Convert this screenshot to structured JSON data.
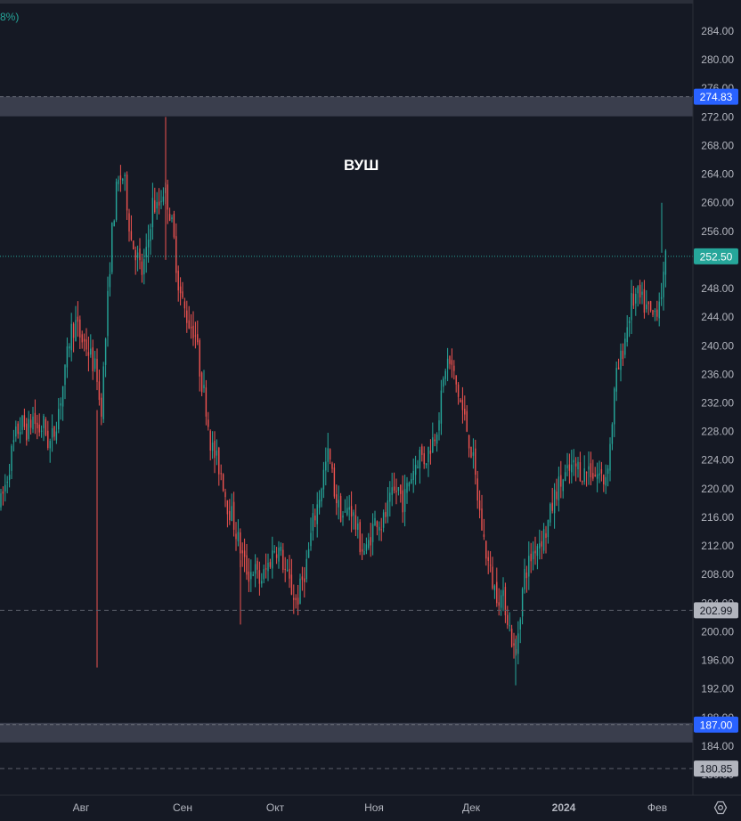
{
  "legend": {
    "change_fragment": "8%)"
  },
  "chart_data": {
    "type": "candlestick",
    "title": "ВУШ",
    "x_tick_labels": [
      "Авг",
      "Сен",
      "Окт",
      "Ноя",
      "Дек",
      "2024",
      "Фев"
    ],
    "y_tick_labels": [
      "284.00",
      "280.00",
      "276.00",
      "272.00",
      "268.00",
      "264.00",
      "260.00",
      "256.00",
      "252.00",
      "248.00",
      "244.00",
      "240.00",
      "236.00",
      "232.00",
      "228.00",
      "224.00",
      "220.00",
      "216.00",
      "212.00",
      "208.00",
      "204.00",
      "200.00",
      "196.00",
      "192.00",
      "188.00",
      "184.00",
      "180.00"
    ],
    "ylim": [
      178,
      288
    ],
    "last_price": 252.5,
    "levels": [
      {
        "value": 274.83,
        "label": "274.83",
        "style": "zone",
        "color": "#2962ff"
      },
      {
        "value": 202.99,
        "label": "202.99",
        "style": "dashed",
        "color": "#b2b5be"
      },
      {
        "value": 187.0,
        "label": "187.00",
        "style": "zone",
        "color": "#2962ff"
      },
      {
        "value": 180.85,
        "label": "180.85",
        "style": "dashed",
        "color": "#b2b5be"
      }
    ],
    "colors": {
      "up": "#26a69a",
      "down": "#ef5350",
      "last": "#26a69a",
      "zone": "#3a3e4d"
    },
    "anchors": [
      [
        0,
        218
      ],
      [
        6,
        221
      ],
      [
        12,
        225
      ],
      [
        18,
        228
      ],
      [
        24,
        229
      ],
      [
        30,
        228
      ],
      [
        36,
        230
      ],
      [
        42,
        228
      ],
      [
        48,
        229
      ],
      [
        54,
        226
      ],
      [
        60,
        228
      ],
      [
        66,
        232
      ],
      [
        72,
        236
      ],
      [
        78,
        242
      ],
      [
        84,
        243
      ],
      [
        90,
        241
      ],
      [
        96,
        240
      ],
      [
        102,
        238
      ],
      [
        108,
        236
      ],
      [
        112,
        230
      ],
      [
        118,
        242
      ],
      [
        124,
        255
      ],
      [
        130,
        262
      ],
      [
        136,
        264
      ],
      [
        140,
        262
      ],
      [
        146,
        255
      ],
      [
        152,
        253
      ],
      [
        158,
        250
      ],
      [
        164,
        253
      ],
      [
        170,
        260
      ],
      [
        176,
        259
      ],
      [
        182,
        262
      ],
      [
        188,
        260
      ],
      [
        194,
        255
      ],
      [
        200,
        248
      ],
      [
        206,
        245
      ],
      [
        212,
        243
      ],
      [
        218,
        242
      ],
      [
        224,
        236
      ],
      [
        230,
        232
      ],
      [
        236,
        226
      ],
      [
        242,
        224
      ],
      [
        248,
        222
      ],
      [
        254,
        218
      ],
      [
        260,
        216
      ],
      [
        266,
        213
      ],
      [
        272,
        210
      ],
      [
        278,
        208
      ],
      [
        284,
        209
      ],
      [
        290,
        207
      ],
      [
        296,
        208
      ],
      [
        302,
        210
      ],
      [
        308,
        212
      ],
      [
        314,
        211
      ],
      [
        320,
        208
      ],
      [
        326,
        206
      ],
      [
        332,
        204
      ],
      [
        338,
        207
      ],
      [
        344,
        210
      ],
      [
        350,
        215
      ],
      [
        356,
        218
      ],
      [
        362,
        222
      ],
      [
        368,
        225
      ],
      [
        374,
        220
      ],
      [
        380,
        217
      ],
      [
        386,
        216
      ],
      [
        392,
        218
      ],
      [
        398,
        215
      ],
      [
        404,
        212
      ],
      [
        410,
        211
      ],
      [
        416,
        214
      ],
      [
        422,
        216
      ],
      [
        428,
        215
      ],
      [
        434,
        217
      ],
      [
        440,
        219
      ],
      [
        446,
        220
      ],
      [
        452,
        218
      ],
      [
        458,
        221
      ],
      [
        464,
        223
      ],
      [
        470,
        225
      ],
      [
        476,
        224
      ],
      [
        482,
        226
      ],
      [
        488,
        228
      ],
      [
        494,
        232
      ],
      [
        500,
        238
      ],
      [
        506,
        237
      ],
      [
        512,
        234
      ],
      [
        518,
        231
      ],
      [
        524,
        228
      ],
      [
        530,
        224
      ],
      [
        536,
        218
      ],
      [
        542,
        213
      ],
      [
        548,
        209
      ],
      [
        554,
        206
      ],
      [
        560,
        205
      ],
      [
        566,
        204
      ],
      [
        572,
        200
      ],
      [
        578,
        196
      ],
      [
        582,
        202
      ],
      [
        588,
        208
      ],
      [
        594,
        210
      ],
      [
        600,
        212
      ],
      [
        606,
        213
      ],
      [
        612,
        214
      ],
      [
        618,
        217
      ],
      [
        624,
        220
      ],
      [
        630,
        221
      ],
      [
        636,
        222
      ],
      [
        642,
        223
      ],
      [
        648,
        223
      ],
      [
        654,
        222
      ],
      [
        660,
        223
      ],
      [
        666,
        222
      ],
      [
        672,
        222
      ],
      [
        678,
        221
      ],
      [
        684,
        226
      ],
      [
        690,
        235
      ],
      [
        696,
        238
      ],
      [
        702,
        242
      ],
      [
        708,
        246
      ],
      [
        714,
        247
      ],
      [
        720,
        246
      ],
      [
        726,
        245
      ],
      [
        732,
        244
      ],
      [
        738,
        246
      ],
      [
        744,
        249
      ],
      [
        747,
        252.5
      ]
    ]
  }
}
